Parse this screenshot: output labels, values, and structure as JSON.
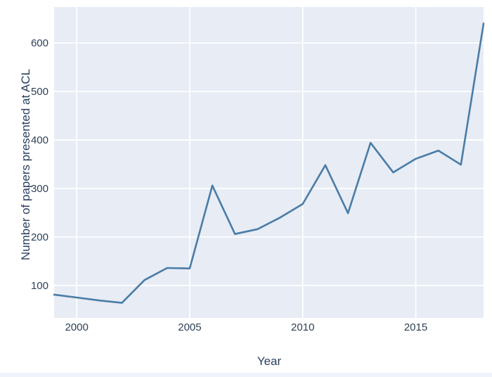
{
  "chart_data": {
    "type": "line",
    "x": [
      1999,
      2000,
      2001,
      2002,
      2003,
      2004,
      2005,
      2006,
      2007,
      2008,
      2009,
      2010,
      2011,
      2012,
      2013,
      2014,
      2015,
      2016,
      2017,
      2018
    ],
    "values": [
      81,
      75,
      69,
      64,
      111,
      136,
      135,
      306,
      206,
      216,
      240,
      268,
      348,
      249,
      394,
      333,
      361,
      378,
      349,
      640
    ],
    "series_name": "Number of papers presented at ACL",
    "title": "",
    "xlabel": "Year",
    "ylabel": "Number of papers presented at ACL",
    "xticks": [
      2000,
      2005,
      2010,
      2015
    ],
    "yticks": [
      100,
      200,
      300,
      400,
      500,
      600
    ],
    "xlim": [
      1999,
      2018
    ],
    "ylim": [
      33,
      674
    ],
    "grid": true,
    "legend": "none"
  },
  "colors": {
    "plot_background": "#e7ecf5",
    "gridline": "#ffffff",
    "line": "#4a7ca6",
    "tick_text": "#2e4157",
    "axis_label_text": "#2a3f5f",
    "page_background": "#ffffff",
    "bottom_strip": "#f0f3f9"
  }
}
